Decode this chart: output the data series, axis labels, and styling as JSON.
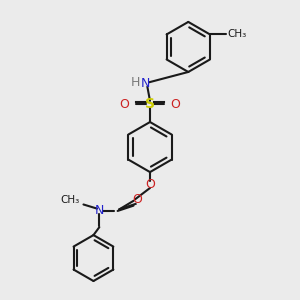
{
  "background_color": "#ebebeb",
  "bond_color": "#1a1a1a",
  "nitrogen_color": "#2222cc",
  "oxygen_color": "#cc2222",
  "sulfur_color": "#cccc00",
  "hydrogen_color": "#7a7a7a",
  "font_size": 9,
  "bond_width": 1.5,
  "figsize": [
    3.0,
    3.0
  ],
  "dpi": 100,
  "xlim": [
    0,
    10
  ],
  "ylim": [
    0,
    10
  ]
}
